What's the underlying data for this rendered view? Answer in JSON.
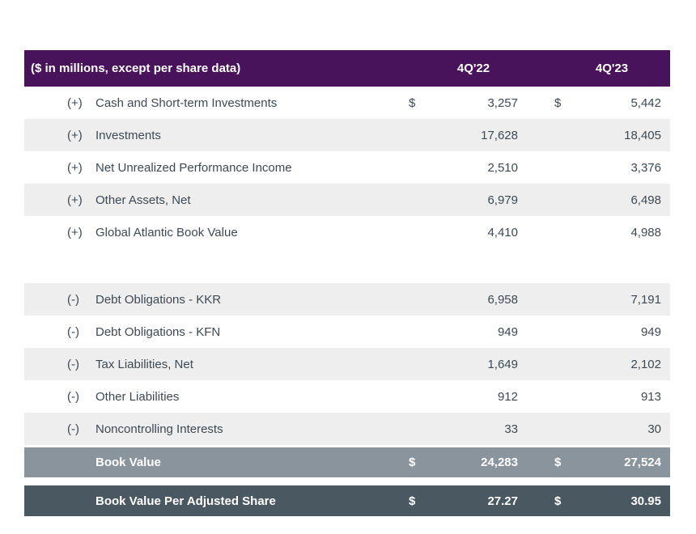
{
  "table": {
    "header": {
      "title": "($ in millions, except per share data)",
      "col1": "4Q'22",
      "col2": "4Q'23"
    },
    "currency_symbol": "$",
    "additions": [
      {
        "sign": "(+)",
        "label": "Cash and Short-term Investments",
        "v1": "3,257",
        "v2": "5,442"
      },
      {
        "sign": "(+)",
        "label": "Investments",
        "v1": "17,628",
        "v2": "18,405"
      },
      {
        "sign": "(+)",
        "label": "Net Unrealized Performance Income",
        "v1": "2,510",
        "v2": "3,376"
      },
      {
        "sign": "(+)",
        "label": "Other Assets, Net",
        "v1": "6,979",
        "v2": "6,498"
      },
      {
        "sign": "(+)",
        "label": "Global Atlantic Book Value",
        "v1": "4,410",
        "v2": "4,988"
      }
    ],
    "subtractions": [
      {
        "sign": "(-)",
        "label": "Debt Obligations - KKR",
        "v1": "6,958",
        "v2": "7,191"
      },
      {
        "sign": "(-)",
        "label": "Debt Obligations - KFN",
        "v1": "949",
        "v2": "949"
      },
      {
        "sign": "(-)",
        "label": "Tax Liabilities, Net",
        "v1": "1,649",
        "v2": "2,102"
      },
      {
        "sign": "(-)",
        "label": "Other Liabilities",
        "v1": "912",
        "v2": "913"
      },
      {
        "sign": "(-)",
        "label": "Noncontrolling Interests",
        "v1": "33",
        "v2": "30"
      }
    ],
    "summary": [
      {
        "label": "Book Value",
        "v1": "24,283",
        "v2": "27,524"
      },
      {
        "label": "Book Value Per Adjusted Share",
        "v1": "27.27",
        "v2": "30.95"
      }
    ]
  },
  "colors": {
    "header_bg": "#49135B",
    "stripe_bg": "#EEEEEE",
    "book_value_bg": "#8A949C",
    "book_value_per_share_bg": "#4A5861",
    "body_text": "#3E4953",
    "header_text": "#FFFFFF"
  }
}
